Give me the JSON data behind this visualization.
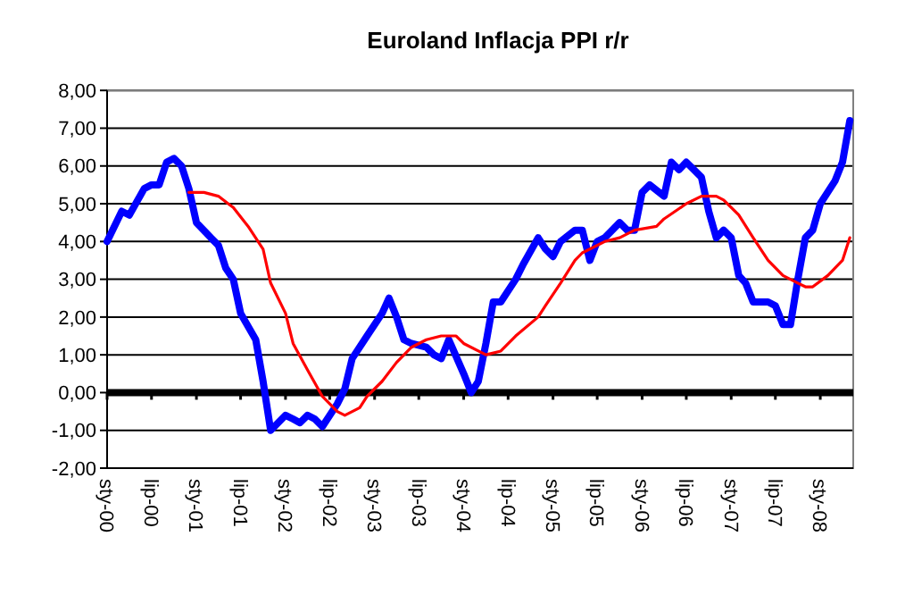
{
  "chart_data": {
    "type": "line",
    "title": "Euroland Inflacja PPI r/r",
    "xlim": [
      "2000-01",
      "2008-05-15"
    ],
    "xticks": [
      {
        "value": "2000-01",
        "label": "sty-00"
      },
      {
        "value": "2000-07",
        "label": "lip-00"
      },
      {
        "value": "2001-01",
        "label": "sty-01"
      },
      {
        "value": "2001-07",
        "label": "lip-01"
      },
      {
        "value": "2002-01",
        "label": "sty-02"
      },
      {
        "value": "2002-07",
        "label": "lip-02"
      },
      {
        "value": "2003-01",
        "label": "sty-03"
      },
      {
        "value": "2003-07",
        "label": "lip-03"
      },
      {
        "value": "2004-01",
        "label": "sty-04"
      },
      {
        "value": "2004-07",
        "label": "lip-04"
      },
      {
        "value": "2005-01",
        "label": "sty-05"
      },
      {
        "value": "2005-07",
        "label": "lip-05"
      },
      {
        "value": "2006-01",
        "label": "sty-06"
      },
      {
        "value": "2006-07",
        "label": "lip-06"
      },
      {
        "value": "2007-01",
        "label": "sty-07"
      },
      {
        "value": "2007-07",
        "label": "lip-07"
      },
      {
        "value": "2008-01",
        "label": "sty-08"
      }
    ],
    "ylim": [
      -2,
      8
    ],
    "yticks": [
      {
        "value": -2,
        "label": "-2,00"
      },
      {
        "value": -1,
        "label": "-1,00"
      },
      {
        "value": 0,
        "label": "0,00"
      },
      {
        "value": 1,
        "label": "1,00"
      },
      {
        "value": 2,
        "label": "2,00"
      },
      {
        "value": 3,
        "label": "3,00"
      },
      {
        "value": 4,
        "label": "4,00"
      },
      {
        "value": 5,
        "label": "5,00"
      },
      {
        "value": 6,
        "label": "6,00"
      },
      {
        "value": 7,
        "label": "7,00"
      },
      {
        "value": 8,
        "label": "8,00"
      }
    ],
    "grid": "y",
    "marker": "none",
    "line_style": "solid",
    "ref_lines": [
      {
        "axis": "y",
        "value": 0,
        "color": "#000000"
      }
    ],
    "series": [
      {
        "color": "#0000ff",
        "x": [
          "2000-01",
          "2000-03",
          "2000-04",
          "2000-06",
          "2000-07",
          "2000-08",
          "2000-09",
          "2000-10",
          "2000-11",
          "2000-12",
          "2001-01",
          "2001-03",
          "2001-04",
          "2001-05",
          "2001-06",
          "2001-07",
          "2001-09",
          "2001-10",
          "2001-11",
          "2002-01",
          "2002-02",
          "2002-03",
          "2002-04",
          "2002-05",
          "2002-06",
          "2002-08",
          "2002-09",
          "2002-10",
          "2002-12",
          "2003-02",
          "2003-03",
          "2003-04",
          "2003-05",
          "2003-06",
          "2003-08",
          "2003-09",
          "2003-10",
          "2003-11",
          "2004-01",
          "2004-02",
          "2004-03",
          "2004-04",
          "2004-05",
          "2004-06",
          "2004-08",
          "2004-09",
          "2004-11",
          "2004-12",
          "2005-01",
          "2005-02",
          "2005-04",
          "2005-05",
          "2005-06",
          "2005-07",
          "2005-08",
          "2005-10",
          "2005-11",
          "2005-12",
          "2006-01",
          "2006-02",
          "2006-04",
          "2006-05",
          "2006-06",
          "2006-07",
          "2006-09",
          "2006-10",
          "2006-11",
          "2006-12",
          "2007-01",
          "2007-02",
          "2007-03",
          "2007-04",
          "2007-06",
          "2007-07",
          "2007-08",
          "2007-09",
          "2007-10",
          "2007-11",
          "2007-12",
          "2008-01",
          "2008-03",
          "2008-04",
          "2008-05"
        ],
        "values": [
          4.0,
          4.8,
          4.7,
          5.4,
          5.5,
          5.5,
          6.1,
          6.2,
          6.0,
          5.4,
          4.5,
          4.1,
          3.9,
          3.3,
          3.0,
          2.1,
          1.4,
          0.3,
          -1.0,
          -0.6,
          -0.7,
          -0.8,
          -0.6,
          -0.7,
          -0.9,
          -0.3,
          0.1,
          0.9,
          1.5,
          2.1,
          2.5,
          2.0,
          1.4,
          1.3,
          1.2,
          1.0,
          0.9,
          1.4,
          0.5,
          0.0,
          0.3,
          1.3,
          2.4,
          2.4,
          3.0,
          3.4,
          4.1,
          3.8,
          3.6,
          4.0,
          4.3,
          4.3,
          3.5,
          4.0,
          4.1,
          4.5,
          4.3,
          4.3,
          5.3,
          5.5,
          5.2,
          6.1,
          5.9,
          6.1,
          5.7,
          4.8,
          4.1,
          4.3,
          4.1,
          3.1,
          2.9,
          2.4,
          2.4,
          2.3,
          1.8,
          1.8,
          3.0,
          4.1,
          4.3,
          5.0,
          5.6,
          6.1,
          7.2
        ]
      },
      {
        "color": "#ff0000",
        "x": [
          "2000-12",
          "2001-02",
          "2001-04",
          "2001-06",
          "2001-08",
          "2001-10",
          "2001-11",
          "2002-01",
          "2002-02",
          "2002-04",
          "2002-06",
          "2002-08",
          "2002-09",
          "2002-11",
          "2002-12",
          "2003-02",
          "2003-04",
          "2003-06",
          "2003-08",
          "2003-10",
          "2003-12",
          "2004-01",
          "2004-04",
          "2004-06",
          "2004-08",
          "2004-11",
          "2004-12",
          "2005-02",
          "2005-04",
          "2005-05",
          "2005-08",
          "2005-10",
          "2005-12",
          "2006-03",
          "2006-04",
          "2006-07",
          "2006-09",
          "2006-11",
          "2006-12",
          "2007-02",
          "2007-04",
          "2007-06",
          "2007-08",
          "2007-10",
          "2007-11",
          "2007-12",
          "2008-02",
          "2008-04",
          "2008-05"
        ],
        "values": [
          5.3,
          5.3,
          5.2,
          4.9,
          4.4,
          3.8,
          2.9,
          2.1,
          1.3,
          0.6,
          -0.1,
          -0.5,
          -0.6,
          -0.4,
          -0.1,
          0.3,
          0.8,
          1.2,
          1.4,
          1.5,
          1.5,
          1.3,
          1.0,
          1.1,
          1.5,
          2.0,
          2.3,
          2.9,
          3.5,
          3.7,
          4.0,
          4.1,
          4.3,
          4.4,
          4.6,
          5.0,
          5.2,
          5.2,
          5.1,
          4.7,
          4.1,
          3.5,
          3.1,
          2.9,
          2.8,
          2.8,
          3.1,
          3.5,
          4.1
        ]
      }
    ]
  }
}
